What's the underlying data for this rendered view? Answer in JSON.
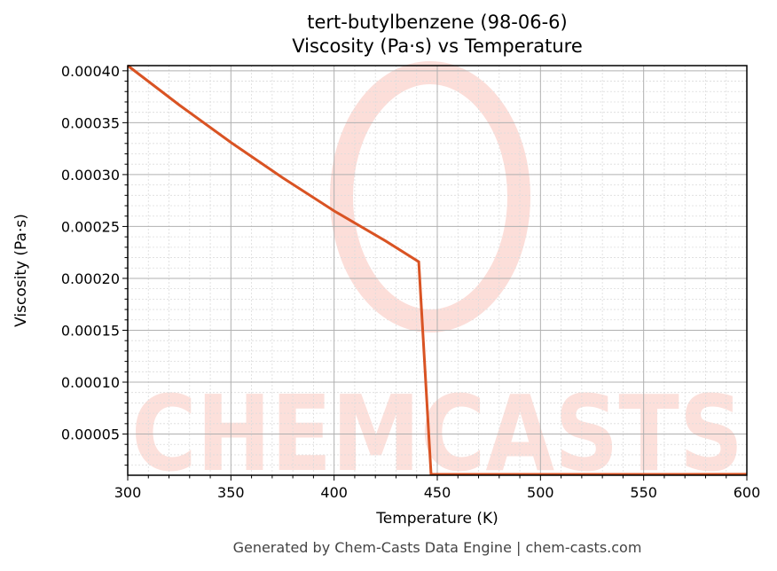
{
  "title": {
    "line1": "tert-butylbenzene (98-06-6)",
    "line2": "Viscosity (Pa·s) vs Temperature"
  },
  "axes": {
    "xlabel": "Temperature (K)",
    "ylabel": "Viscosity (Pa·s)"
  },
  "footer": "Generated by Chem-Casts Data Engine | chem-casts.com",
  "watermark": "CHEMCASTS",
  "colors": {
    "line": "#d95323",
    "grid_major": "#b0b0b0",
    "grid_minor": "#dcdcdc",
    "watermark": "#fbd6cf"
  },
  "chart_data": {
    "type": "line",
    "title": "tert-butylbenzene (98-06-6) Viscosity (Pa·s) vs Temperature",
    "xlabel": "Temperature (K)",
    "ylabel": "Viscosity (Pa·s)",
    "xlim": [
      300,
      600
    ],
    "ylim": [
      1e-05,
      0.000405
    ],
    "xticks": [
      300,
      350,
      400,
      450,
      500,
      550,
      600
    ],
    "yticks": [
      "0.00005",
      "0.00010",
      "0.00015",
      "0.00020",
      "0.00025",
      "0.00030",
      "0.00035",
      "0.00040"
    ],
    "grid": true,
    "legend": null,
    "series": [
      {
        "name": "Viscosity",
        "x": [
          300,
          325,
          350,
          375,
          400,
          425,
          441,
          447,
          500,
          550,
          600
        ],
        "y": [
          0.000405,
          0.000367,
          0.000331,
          0.000297,
          0.000265,
          0.000236,
          0.000216,
          9.5e-06,
          1e-05,
          1.05e-05,
          1.12e-05
        ]
      }
    ]
  }
}
